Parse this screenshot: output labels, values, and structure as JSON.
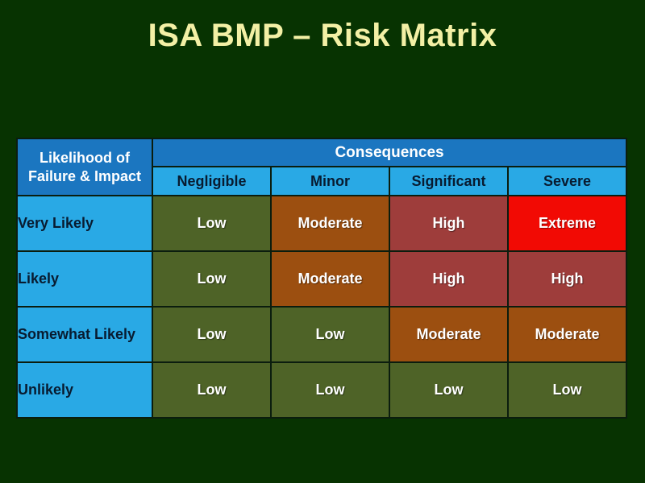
{
  "slide": {
    "title": "ISA BMP – Risk Matrix"
  },
  "matrix": {
    "corner": {
      "line1": "Likelihood of",
      "line2": "Failure & Impact"
    },
    "consequences_header": "Consequences",
    "columns": [
      "Negligible",
      "Minor",
      "Significant",
      "Severe"
    ],
    "rows": [
      {
        "label": "Very Likely",
        "cells": [
          {
            "text": "Low",
            "level": "low"
          },
          {
            "text": "Moderate",
            "level": "moderate"
          },
          {
            "text": "High",
            "level": "high"
          },
          {
            "text": "Extreme",
            "level": "extreme"
          }
        ]
      },
      {
        "label": "Likely",
        "cells": [
          {
            "text": "Low",
            "level": "low"
          },
          {
            "text": "Moderate",
            "level": "moderate"
          },
          {
            "text": "High",
            "level": "high"
          },
          {
            "text": "High",
            "level": "high"
          }
        ]
      },
      {
        "label": "Somewhat Likely",
        "cells": [
          {
            "text": "Low",
            "level": "low"
          },
          {
            "text": "Low",
            "level": "low"
          },
          {
            "text": "Moderate",
            "level": "moderate"
          },
          {
            "text": "Moderate",
            "level": "moderate"
          }
        ]
      },
      {
        "label": "Unlikely",
        "cells": [
          {
            "text": "Low",
            "level": "low"
          },
          {
            "text": "Low",
            "level": "low"
          },
          {
            "text": "Low",
            "level": "low"
          },
          {
            "text": "Low",
            "level": "low"
          }
        ]
      }
    ]
  },
  "colors": {
    "background": "#073301",
    "title_text": "#f3f0a5",
    "header_blue": "#1b76c0",
    "subheader_cyan": "#29a9e5",
    "level_low": "#4e6327",
    "level_moderate": "#9c4f10",
    "level_high": "#9e3d3b",
    "level_extreme": "#f20a04",
    "cell_text": "#ffffff",
    "label_text": "#081b30"
  },
  "chart_data": {
    "type": "heatmap",
    "title": "ISA BMP – Risk Matrix",
    "xlabel": "Consequences",
    "ylabel": "Likelihood of Failure & Impact",
    "x_categories": [
      "Negligible",
      "Minor",
      "Significant",
      "Severe"
    ],
    "y_categories": [
      "Very Likely",
      "Likely",
      "Somewhat Likely",
      "Unlikely"
    ],
    "values": [
      [
        "Low",
        "Moderate",
        "High",
        "Extreme"
      ],
      [
        "Low",
        "Moderate",
        "High",
        "High"
      ],
      [
        "Low",
        "Low",
        "Moderate",
        "Moderate"
      ],
      [
        "Low",
        "Low",
        "Low",
        "Low"
      ]
    ],
    "value_color_map": {
      "Low": "#4e6327",
      "Moderate": "#9c4f10",
      "High": "#9e3d3b",
      "Extreme": "#f20a04"
    },
    "legend_position": "none",
    "grid": true
  }
}
